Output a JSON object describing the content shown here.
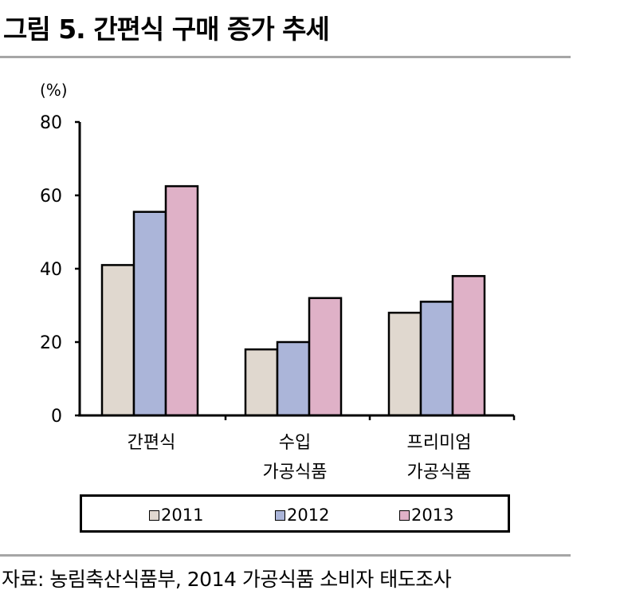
{
  "title": "그림 5. 간편식 구매 증가 추세",
  "source": "자료:  농림축산식품부, 2014 가공식품 소비자 태도조사",
  "chart_data": {
    "type": "bar",
    "unit_label": "(%)",
    "categories": [
      [
        "간편식"
      ],
      [
        "수입",
        "가공식품"
      ],
      [
        "프리미엄",
        "가공식품"
      ]
    ],
    "series": [
      {
        "name": "2011",
        "color": "#e0d8cf",
        "values": [
          41,
          18,
          28
        ]
      },
      {
        "name": "2012",
        "color": "#abb5d9",
        "values": [
          55.5,
          20,
          31
        ]
      },
      {
        "name": "2013",
        "color": "#dfb1c7",
        "values": [
          62.5,
          32,
          38
        ]
      }
    ],
    "ylim": [
      0,
      80
    ],
    "yticks": [
      0,
      20,
      40,
      60,
      80
    ],
    "grid": false,
    "legend_position": "bottom"
  }
}
